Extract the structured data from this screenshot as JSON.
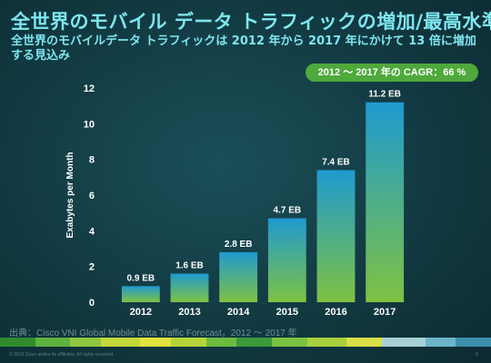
{
  "title": "全世界のモバイル データ トラフィックの増加/最高水準",
  "subtitle": "全世界のモバイルデータ トラフィックは 2012 年から 2017 年にかけて 13 倍に増加する見込み",
  "cagr_label": "2012 ～ 2017 年の CAGR：66 %",
  "source": "出典：Cisco VNI Global Mobile Data Traffic Forecast，2012 ～ 2017 年",
  "footer_left": "© 2013 Cisco and/or its affiliates. All rights reserved.",
  "footer_right": "5",
  "strip_colors": [
    "#2f8c2e",
    "#5fb23e",
    "#8fc73e",
    "#c3d83a",
    "#e2e23c",
    "#b6d43a",
    "#6dbb3f",
    "#3a9a3a",
    "#7cc242",
    "#a8cf3e",
    "#d9e045",
    "#a6d0d6",
    "#6cb5c9",
    "#3b8fad"
  ],
  "chart_data": {
    "type": "bar",
    "categories": [
      "2012",
      "2013",
      "2014",
      "2015",
      "2016",
      "2017"
    ],
    "values": [
      0.9,
      1.6,
      2.8,
      4.7,
      7.4,
      11.2
    ],
    "data_labels": [
      "0.9 EB",
      "1.6 EB",
      "2.8 EB",
      "4.7 EB",
      "7.4 EB",
      "11.2 EB"
    ],
    "ylabel": "Exabytes per Month",
    "xlabel": "",
    "ylim": [
      0,
      12
    ],
    "yticks": [
      0,
      2,
      4,
      6,
      8,
      10,
      12
    ],
    "grid": false,
    "bar_gradient_top": "#1f9ad0",
    "bar_gradient_bottom": "#7ec242"
  }
}
